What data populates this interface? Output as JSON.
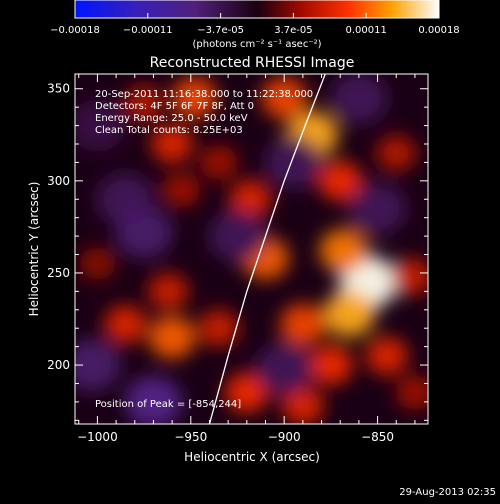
{
  "chart_data": {
    "type": "heatmap",
    "title": "Reconstructed RHESSI Image",
    "xlabel": "Heliocentric X (arcsec)",
    "ylabel": "Heliocentric Y (arcsec)",
    "xlim": [
      -1012,
      -823
    ],
    "ylim": [
      168,
      358
    ],
    "xticks": [
      -1000,
      -950,
      -900,
      -850
    ],
    "yticks": [
      200,
      250,
      300,
      350
    ],
    "colorbar": {
      "ticks": [
        "-0.00018",
        "-0.00011",
        "-3.7e-05",
        "3.7e-05",
        "0.00011",
        "0.00018"
      ],
      "range": [
        -0.00018,
        0.00018
      ],
      "unit_label": "(photons cm⁻² s⁻¹ asec⁻²)"
    },
    "annotations": {
      "time": "20-Sep-2011 11:16:38.000 to 11:22:38.000",
      "detectors": "Detectors: 4F 5F 6F 7F 8F, Att 0",
      "energy": "Energy Range: 25.0 - 50.0 keV",
      "method": "Clean     Total counts: 8.25E+03",
      "peak": "Position of Peak = [-854,244]"
    },
    "limb": {
      "points": [
        [
          -940,
          168
        ],
        [
          -930,
          205
        ],
        [
          -920,
          240
        ],
        [
          -910,
          270
        ],
        [
          -900,
          300
        ],
        [
          -888,
          332
        ],
        [
          -878,
          358
        ]
      ]
    },
    "blobs": [
      {
        "x": -855,
        "y": 245,
        "v": 0.00018
      },
      {
        "x": -865,
        "y": 228,
        "v": 0.00014
      },
      {
        "x": -868,
        "y": 262,
        "v": 0.00012
      },
      {
        "x": -890,
        "y": 222,
        "v": 0.0001
      },
      {
        "x": -875,
        "y": 200,
        "v": 9e-05
      },
      {
        "x": -845,
        "y": 205,
        "v": 8e-05
      },
      {
        "x": -832,
        "y": 248,
        "v": 7e-05
      },
      {
        "x": -885,
        "y": 325,
        "v": 0.00014
      },
      {
        "x": -870,
        "y": 300,
        "v": 9e-05
      },
      {
        "x": -910,
        "y": 258,
        "v": 0.00011
      },
      {
        "x": -918,
        "y": 290,
        "v": 8e-05
      },
      {
        "x": -900,
        "y": 345,
        "v": 0.0001
      },
      {
        "x": -948,
        "y": 345,
        "v": 0.0001
      },
      {
        "x": -960,
        "y": 320,
        "v": 8e-05
      },
      {
        "x": -975,
        "y": 342,
        "v": 6e-05
      },
      {
        "x": -960,
        "y": 215,
        "v": 0.00011
      },
      {
        "x": -985,
        "y": 222,
        "v": 8e-05
      },
      {
        "x": -962,
        "y": 240,
        "v": 7e-05
      },
      {
        "x": -1000,
        "y": 255,
        "v": 4e-05
      },
      {
        "x": -920,
        "y": 185,
        "v": 9e-05
      },
      {
        "x": -890,
        "y": 178,
        "v": 8e-05
      },
      {
        "x": -935,
        "y": 220,
        "v": 7e-05
      },
      {
        "x": -955,
        "y": 295,
        "v": 5e-05
      },
      {
        "x": -935,
        "y": 310,
        "v": 5e-05
      },
      {
        "x": -840,
        "y": 315,
        "v": 6e-05
      },
      {
        "x": -830,
        "y": 185,
        "v": 5e-05
      },
      {
        "x": -985,
        "y": 290,
        "v": -3e-05
      },
      {
        "x": -975,
        "y": 272,
        "v": -4e-05
      },
      {
        "x": -970,
        "y": 180,
        "v": -6e-05
      },
      {
        "x": -1003,
        "y": 200,
        "v": -4e-05
      },
      {
        "x": -925,
        "y": 270,
        "v": -3e-05
      },
      {
        "x": -895,
        "y": 310,
        "v": -3e-05
      },
      {
        "x": -850,
        "y": 285,
        "v": -3e-05
      },
      {
        "x": -900,
        "y": 198,
        "v": -3e-05
      },
      {
        "x": -860,
        "y": 345,
        "v": -3e-05
      },
      {
        "x": -1000,
        "y": 330,
        "v": -2e-05
      }
    ]
  },
  "footer": {
    "date": "29-Aug-2013 02:35"
  }
}
